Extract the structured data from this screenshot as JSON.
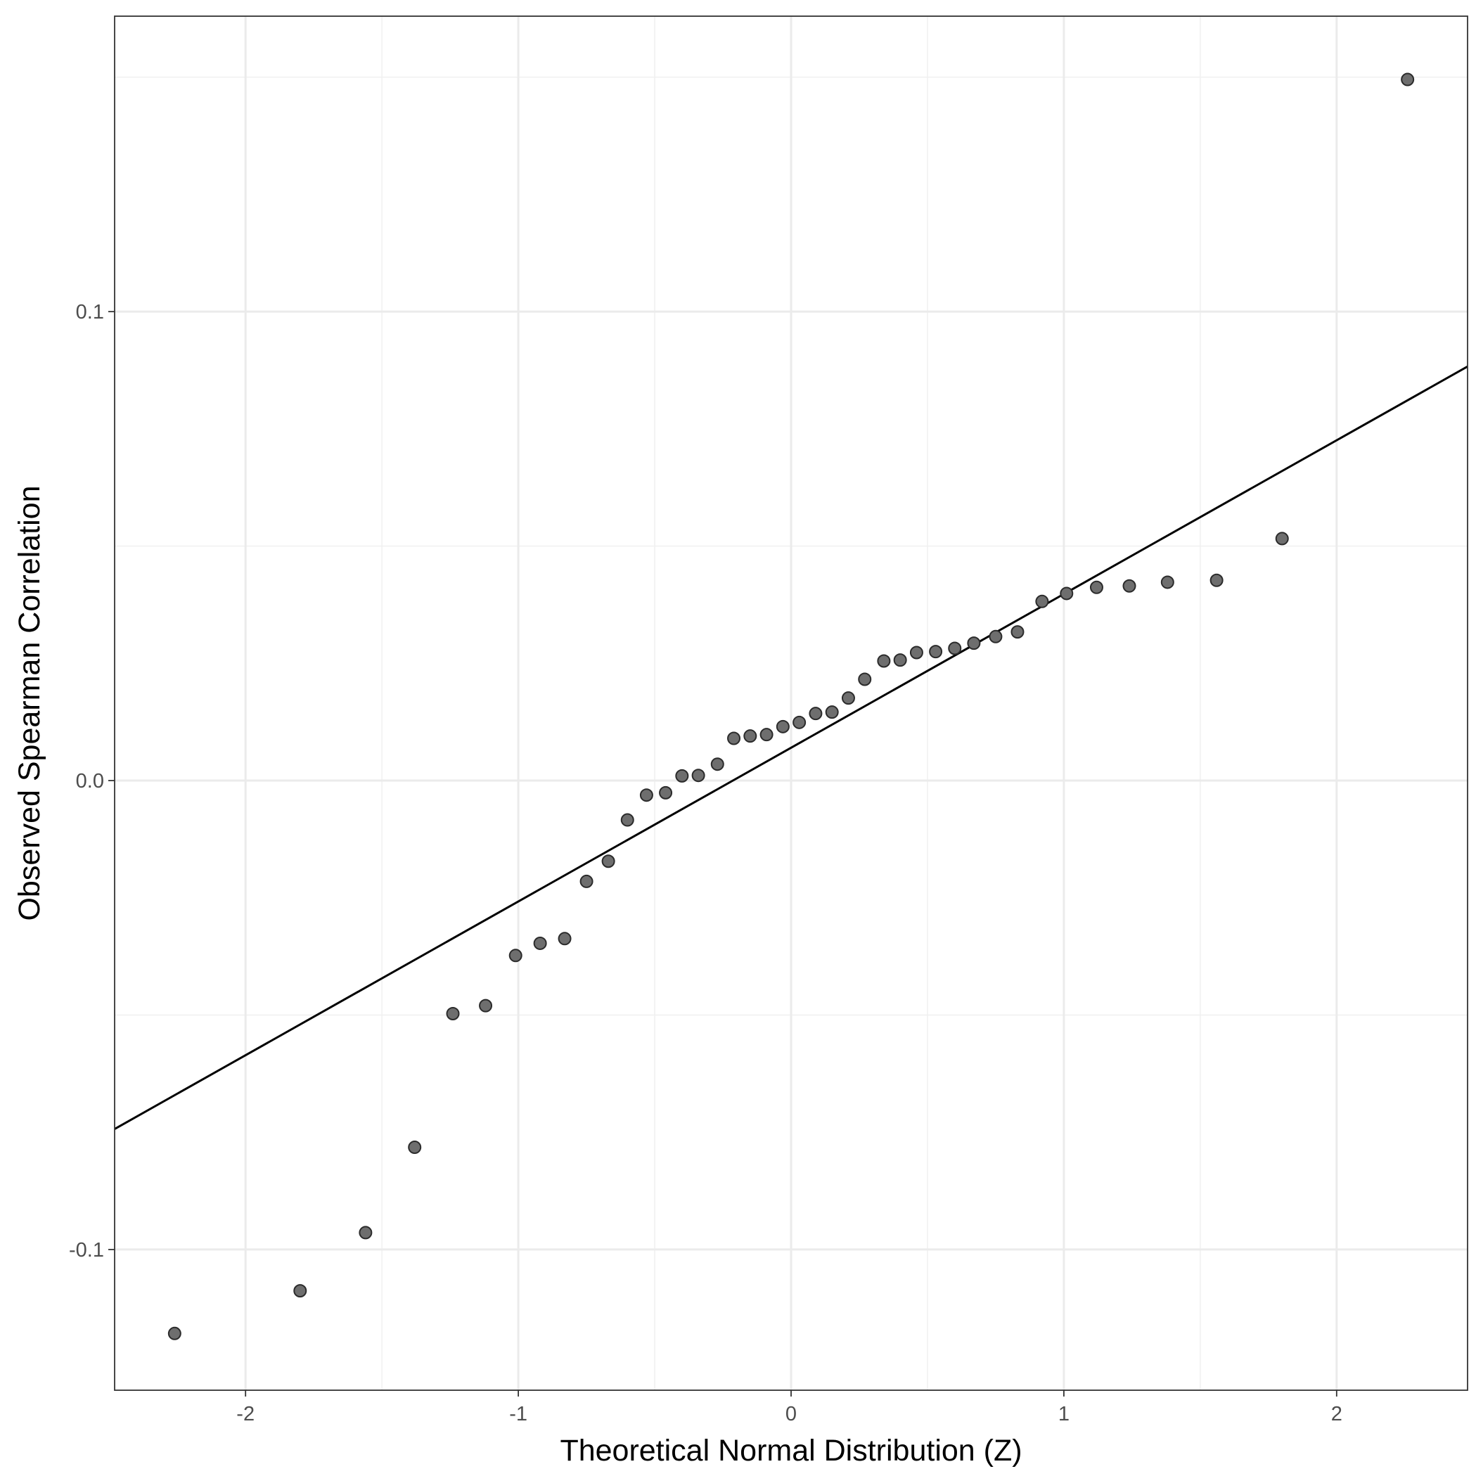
{
  "chart_data": {
    "type": "scatter",
    "title": "",
    "xlabel": "Theoretical Normal Distribution (Z)",
    "ylabel": "Observed Spearman Correlation",
    "xlim": [
      -2.48,
      2.48
    ],
    "ylim": [
      -0.13,
      0.163
    ],
    "x_ticks": [
      -2,
      -1,
      0,
      1,
      2
    ],
    "x_tick_labels": [
      "-2",
      "-1",
      "0",
      "1",
      "2"
    ],
    "y_ticks": [
      -0.1,
      0.0,
      0.1
    ],
    "y_tick_labels": [
      "-0.1",
      "0.0",
      "0.1"
    ],
    "grid": true,
    "legend": "none",
    "point_color": "#6e6e6e",
    "line_color": "#000000",
    "reference_line": {
      "x": [
        -2.48,
        2.48
      ],
      "y": [
        -0.0743,
        0.0883
      ]
    },
    "points": [
      {
        "x": -2.26,
        "y": -0.1179
      },
      {
        "x": -1.8,
        "y": -0.1088
      },
      {
        "x": -1.56,
        "y": -0.0964
      },
      {
        "x": -1.38,
        "y": -0.0782
      },
      {
        "x": -1.24,
        "y": -0.0497
      },
      {
        "x": -1.12,
        "y": -0.048
      },
      {
        "x": -1.01,
        "y": -0.0373
      },
      {
        "x": -0.92,
        "y": -0.0347
      },
      {
        "x": -0.83,
        "y": -0.0337
      },
      {
        "x": -0.75,
        "y": -0.0215
      },
      {
        "x": -0.67,
        "y": -0.0172
      },
      {
        "x": -0.6,
        "y": -0.0084
      },
      {
        "x": -0.53,
        "y": -0.0031
      },
      {
        "x": -0.46,
        "y": -0.0026
      },
      {
        "x": -0.4,
        "y": 0.001
      },
      {
        "x": -0.34,
        "y": 0.0011
      },
      {
        "x": -0.27,
        "y": 0.0035
      },
      {
        "x": -0.21,
        "y": 0.009
      },
      {
        "x": -0.15,
        "y": 0.0095
      },
      {
        "x": -0.09,
        "y": 0.0098
      },
      {
        "x": -0.03,
        "y": 0.0115
      },
      {
        "x": 0.03,
        "y": 0.0124
      },
      {
        "x": 0.09,
        "y": 0.0143
      },
      {
        "x": 0.15,
        "y": 0.0146
      },
      {
        "x": 0.21,
        "y": 0.0176
      },
      {
        "x": 0.27,
        "y": 0.0216
      },
      {
        "x": 0.34,
        "y": 0.0255
      },
      {
        "x": 0.4,
        "y": 0.0257
      },
      {
        "x": 0.46,
        "y": 0.0273
      },
      {
        "x": 0.53,
        "y": 0.0275
      },
      {
        "x": 0.6,
        "y": 0.0282
      },
      {
        "x": 0.67,
        "y": 0.0293
      },
      {
        "x": 0.75,
        "y": 0.0307
      },
      {
        "x": 0.83,
        "y": 0.0317
      },
      {
        "x": 0.92,
        "y": 0.0382
      },
      {
        "x": 1.01,
        "y": 0.0399
      },
      {
        "x": 1.12,
        "y": 0.0412
      },
      {
        "x": 1.24,
        "y": 0.0415
      },
      {
        "x": 1.38,
        "y": 0.0423
      },
      {
        "x": 1.56,
        "y": 0.0427
      },
      {
        "x": 1.8,
        "y": 0.0516
      },
      {
        "x": 2.26,
        "y": 0.1495
      }
    ]
  }
}
